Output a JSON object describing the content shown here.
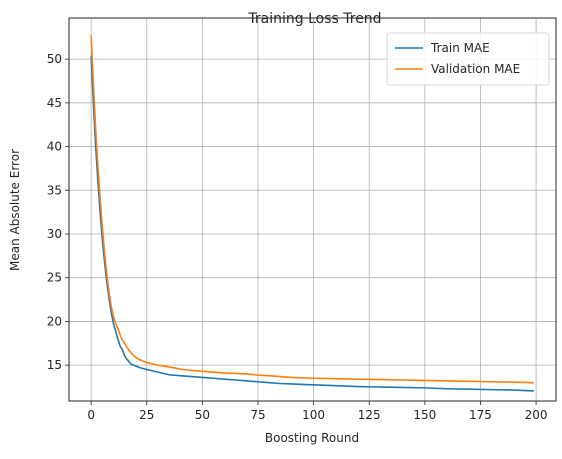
{
  "chart_data": {
    "type": "line",
    "title": "Training Loss Trend",
    "xlabel": "Boosting Round",
    "ylabel": "Mean Absolute Error",
    "xlim": [
      -9.95,
      208.95
    ],
    "ylim": [
      10.9,
      54.7
    ],
    "xticks": [
      0,
      25,
      50,
      75,
      100,
      125,
      150,
      175,
      200
    ],
    "yticks": [
      15,
      20,
      25,
      30,
      35,
      40,
      45,
      50
    ],
    "grid": true,
    "legend_position": "top-right",
    "x": [
      0,
      1,
      2,
      3,
      4,
      5,
      6,
      7,
      8,
      9,
      10,
      11,
      12,
      13,
      14,
      15,
      16,
      17,
      18,
      19,
      20,
      22,
      25,
      30,
      35,
      40,
      45,
      50,
      55,
      60,
      65,
      70,
      75,
      80,
      85,
      90,
      95,
      100,
      110,
      120,
      130,
      140,
      150,
      160,
      170,
      180,
      190,
      199
    ],
    "series": [
      {
        "name": "Train MAE",
        "color": "#1f77b4",
        "values": [
          50.3,
          45.0,
          40.2,
          36.2,
          32.6,
          29.5,
          26.9,
          24.6,
          22.7,
          21.1,
          19.8,
          18.9,
          18.0,
          17.2,
          16.8,
          16.1,
          15.7,
          15.4,
          15.1,
          15.0,
          14.9,
          14.7,
          14.5,
          14.2,
          13.9,
          13.8,
          13.7,
          13.6,
          13.5,
          13.4,
          13.3,
          13.2,
          13.1,
          13.0,
          12.9,
          12.85,
          12.8,
          12.75,
          12.65,
          12.55,
          12.5,
          12.45,
          12.4,
          12.3,
          12.25,
          12.2,
          12.15,
          12.05
        ]
      },
      {
        "name": "Validation MAE",
        "color": "#ff7f0e",
        "values": [
          52.7,
          47.2,
          42.2,
          38.0,
          34.2,
          30.9,
          28.0,
          25.5,
          23.4,
          21.8,
          20.6,
          19.8,
          19.2,
          18.5,
          17.9,
          17.5,
          17.1,
          16.7,
          16.4,
          16.1,
          15.9,
          15.6,
          15.3,
          15.0,
          14.8,
          14.55,
          14.4,
          14.3,
          14.2,
          14.1,
          14.05,
          14.0,
          13.85,
          13.8,
          13.7,
          13.6,
          13.55,
          13.5,
          13.45,
          13.4,
          13.35,
          13.3,
          13.25,
          13.2,
          13.15,
          13.1,
          13.05,
          13.0
        ]
      }
    ]
  }
}
